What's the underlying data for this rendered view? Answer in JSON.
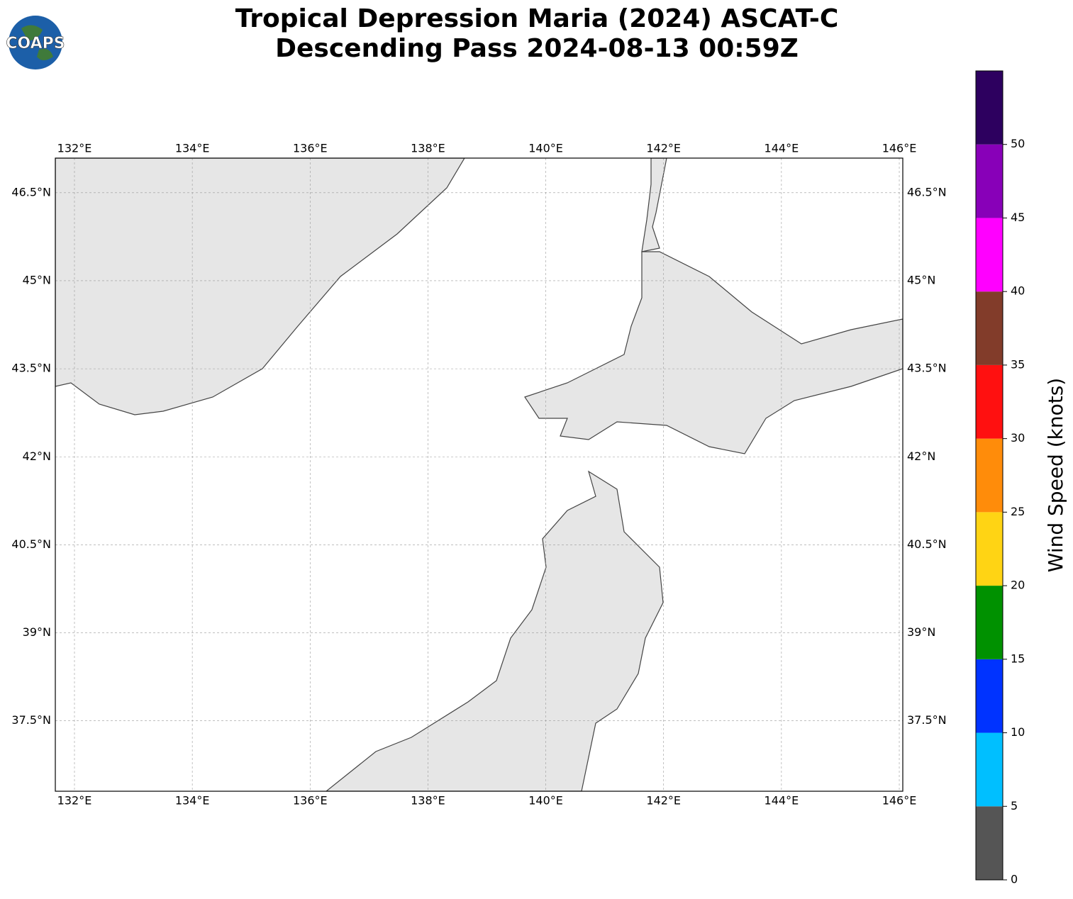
{
  "logo": "COAPS",
  "chart_data": {
    "type": "map",
    "title": "Tropical Depression Maria (2024) ASCAT-C",
    "subtitle": "Descending Pass 2024-08-13 00:59Z",
    "xlim": [
      131.675,
      146.06
    ],
    "ylim": [
      36.3,
      47.09
    ],
    "xticks": [
      {
        "value": 132,
        "label": "132°E"
      },
      {
        "value": 134,
        "label": "134°E"
      },
      {
        "value": 136,
        "label": "136°E"
      },
      {
        "value": 138,
        "label": "138°E"
      },
      {
        "value": 140,
        "label": "140°E"
      },
      {
        "value": 142,
        "label": "142°E"
      },
      {
        "value": 144,
        "label": "144°E"
      },
      {
        "value": 146,
        "label": "146°E"
      }
    ],
    "yticks": [
      {
        "value": 37.5,
        "label": "37.5°N"
      },
      {
        "value": 39,
        "label": "39°N"
      },
      {
        "value": 40.5,
        "label": "40.5°N"
      },
      {
        "value": 42,
        "label": "42°N"
      },
      {
        "value": 43.5,
        "label": "43.5°N"
      },
      {
        "value": 45,
        "label": "45°N"
      },
      {
        "value": 46.5,
        "label": "46.5°N"
      }
    ],
    "grid": true,
    "colorbar": {
      "label": "Wind Speed (knots)",
      "bins": [
        0,
        5,
        10,
        15,
        20,
        25,
        30,
        35,
        40,
        45,
        50,
        55
      ],
      "colors": [
        "#555555",
        "#00bfff",
        "#0033ff",
        "#009100",
        "#ffd414",
        "#ff8c0a",
        "#ff1010",
        "#823c2a",
        "#ff00ff",
        "#8800b8",
        "#2d005f"
      ],
      "ticks": [
        0,
        5,
        10,
        15,
        20,
        25,
        30,
        35,
        40,
        45,
        50
      ]
    }
  }
}
